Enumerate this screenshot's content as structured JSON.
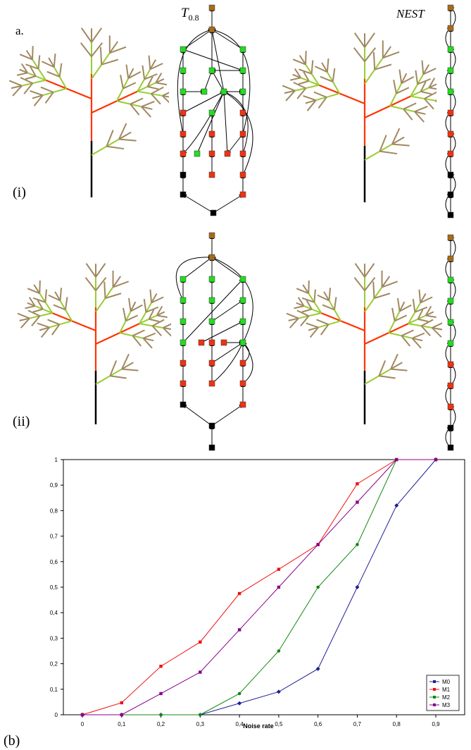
{
  "labels": {
    "panel_a": "a.",
    "panel_b": "(b)",
    "row_i": "(i)",
    "row_ii": "(ii)",
    "col_t_main": "T",
    "col_t_sub": "0.8",
    "col_nest": "NEST"
  },
  "colors": {
    "trunk": "#000000",
    "red": "#ff3300",
    "green": "#99cc33",
    "brown": "#a08860",
    "node_green": "#22dd22",
    "node_red": "#ee3311",
    "node_black": "#000000",
    "node_brown": "#a86a1a",
    "M0": "#1f1f99",
    "M1": "#ee1111",
    "M2": "#118811",
    "M3": "#880088"
  },
  "chart_data": {
    "type": "line",
    "title": "",
    "xlabel": "Noise rate",
    "ylabel": "",
    "x": [
      0,
      0.1,
      0.2,
      0.3,
      0.4,
      0.5,
      0.6,
      0.7,
      0.8,
      0.9
    ],
    "x_tick_labels": [
      "0",
      "0,1",
      "0,2",
      "0,3",
      "0,4",
      "0,5",
      "0,6",
      "0,7",
      "0,8",
      "0,9"
    ],
    "y_tick_labels": [
      "0",
      "0,1",
      "0,2",
      "0,3",
      "0,4",
      "0,5",
      "0,6",
      "0,7",
      "0,8",
      "0,9",
      "1"
    ],
    "ylim": [
      0,
      1
    ],
    "legend_position": "bottom-right",
    "grid": false,
    "series": [
      {
        "name": "M0",
        "values": [
          0,
          0,
          0,
          0,
          0.045,
          0.09,
          0.18,
          0.5,
          0.82,
          1
        ]
      },
      {
        "name": "M1",
        "values": [
          0,
          0.047,
          0.19,
          0.285,
          0.475,
          0.57,
          0.667,
          0.905,
          1,
          1
        ]
      },
      {
        "name": "M2",
        "values": [
          0,
          0,
          0,
          0,
          0.083,
          0.25,
          0.5,
          0.667,
          1,
          1
        ]
      },
      {
        "name": "M3",
        "values": [
          0,
          0,
          0.083,
          0.167,
          0.333,
          0.5,
          0.667,
          0.833,
          1,
          1
        ]
      }
    ]
  }
}
